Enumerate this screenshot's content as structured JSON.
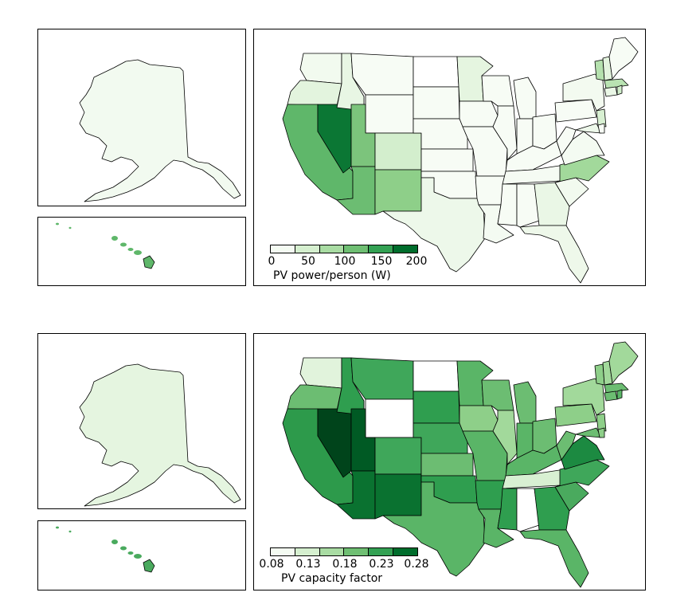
{
  "maps": [
    {
      "colorbar": {
        "label": "PV power/person (W)",
        "ticks": [
          "0",
          "50",
          "100",
          "150",
          "200"
        ],
        "colors": [
          "#f4fbf2",
          "#d5efcf",
          "#a9dca3",
          "#6fbf73",
          "#33a153",
          "#006d2c"
        ]
      },
      "alaska_color": "#f2faf0",
      "hawaii_color": "#5fb76a",
      "states": {
        "WA": "#f2faef",
        "OR": "#e3f4de",
        "CA": "#5fb76a",
        "NV": "#0b7734",
        "ID": "#e8f6e4",
        "MT": "#f7fcf5",
        "WY": "#f7fcf5",
        "UT": "#7cc47c",
        "AZ": "#6cbd72",
        "CO": "#d3eecd",
        "NM": "#8ecf89",
        "ND": "#ffffff",
        "SD": "#f7fcf5",
        "NE": "#f7fcf5",
        "KS": "#f7fcf5",
        "OK": "#f7fcf5",
        "TX": "#edf8ea",
        "MN": "#e5f5e0",
        "IA": "#f7fcf5",
        "MO": "#f7fcf5",
        "AR": "#f7fcf5",
        "LA": "#f4fbf2",
        "WI": "#f7fcf5",
        "IL": "#f7fcf5",
        "MI": "#f7fcf5",
        "IN": "#f7fcf5",
        "OH": "#f7fcf5",
        "KY": "#f7fcf5",
        "TN": "#f5fbf3",
        "MS": "#f7fcf5",
        "AL": "#f7fcf5",
        "GA": "#eaf7e6",
        "FL": "#eef8ea",
        "SC": "#f2faef",
        "NC": "#a2d99b",
        "VA": "#f4fbf2",
        "WV": "#f7fcf5",
        "PA": "#f7fcf5",
        "NY": "#f3faf0",
        "VT": "#b5e1ae",
        "NH": "#e3f4de",
        "ME": "#f7fcf5",
        "MA": "#b9e3b2",
        "NJ": "#d8f0d2",
        "MD": "#edf8ea",
        "DE": "#f7fcf5",
        "CT": "#eaf7e6",
        "RI": "#d0edca"
      }
    },
    {
      "colorbar": {
        "label": "PV capacity factor",
        "ticks": [
          "0.08",
          "0.13",
          "0.18",
          "0.23",
          "0.28"
        ],
        "colors": [
          "#f4fbf2",
          "#d5efcf",
          "#a9dca3",
          "#6fbf73",
          "#33a153",
          "#006d2c"
        ]
      },
      "alaska_color": "#e5f5e0",
      "hawaii_color": "#4aaa5e",
      "states": {
        "WA": "#e1f3dc",
        "OR": "#6cbd72",
        "CA": "#2d9a4b",
        "NV": "#00441b",
        "ID": "#2f9e4f",
        "MT": "#3fa75a",
        "WY": "#ffffff",
        "UT": "#005a24",
        "AZ": "#0a7230",
        "CO": "#3fa75a",
        "NM": "#0a7230",
        "ND": "#ffffff",
        "SD": "#2f9e4f",
        "NE": "#3fa75a",
        "KS": "#6cbd72",
        "OK": "#2f9e4f",
        "TX": "#5ab567",
        "MN": "#5ab567",
        "IA": "#8ecf89",
        "MO": "#5ab567",
        "AR": "#2f9e4f",
        "LA": "#5ab567",
        "WI": "#6cbd72",
        "IL": "#a2d99b",
        "MI": "#6cbd72",
        "IN": "#5ab567",
        "OH": "#6cbd72",
        "KY": "#5ab567",
        "TN": "#d8f0d2",
        "MS": "#2f9e4f",
        "AL": "#ffffff",
        "GA": "#2f9e4f",
        "FL": "#5ab567",
        "SC": "#4aaa5e",
        "NC": "#3fa75a",
        "VA": "#1c8a41",
        "WV": "#6cbd72",
        "PA": "#8ecf89",
        "NY": "#a2d99b",
        "VT": "#8ecf89",
        "NH": "#a2d99b",
        "ME": "#a2d99b",
        "MA": "#6cbd72",
        "NJ": "#8ecf89",
        "MD": "#6cbd72",
        "DE": "#8ecf89",
        "CT": "#6cbd72",
        "RI": "#5ab567"
      }
    }
  ]
}
